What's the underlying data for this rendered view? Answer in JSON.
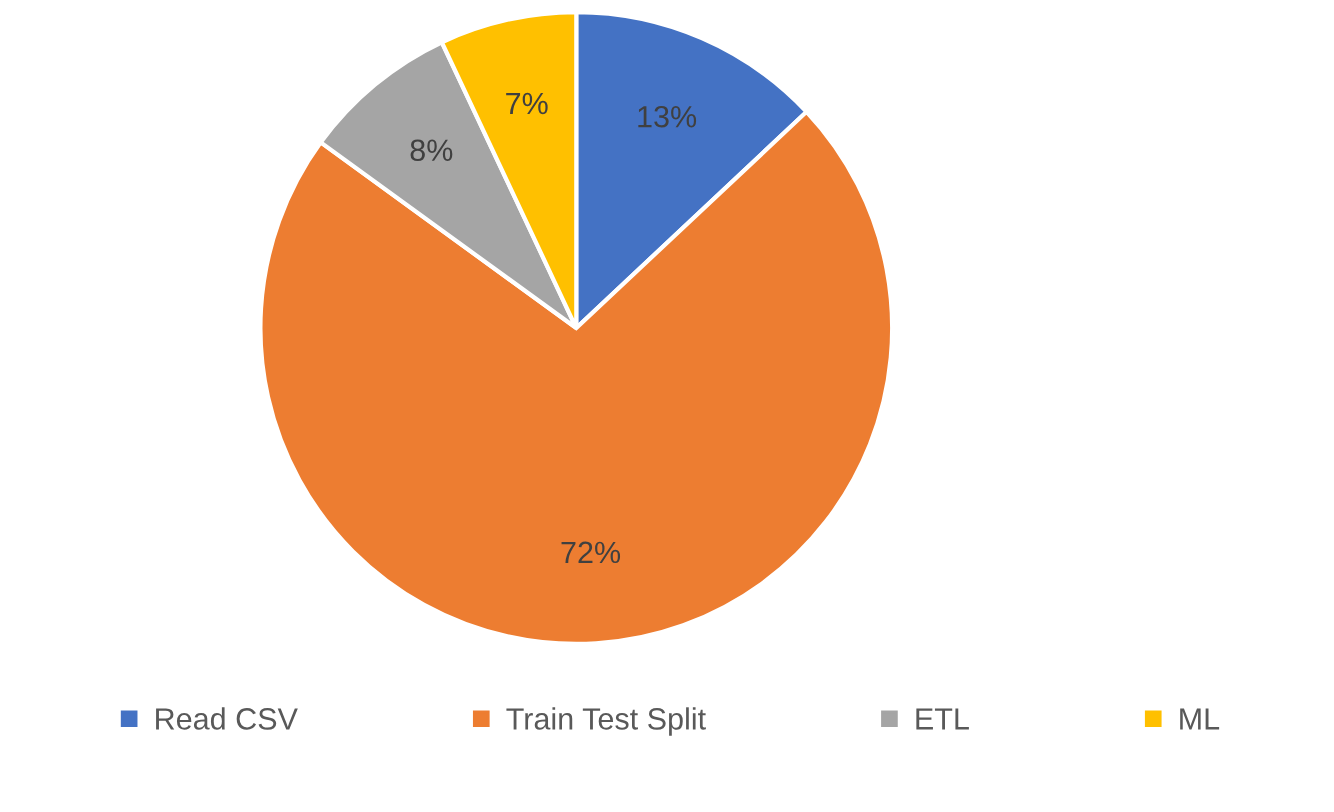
{
  "chart_data": {
    "type": "pie",
    "categories": [
      "Read CSV",
      "Train Test Split",
      "ETL",
      "ML"
    ],
    "values": [
      13,
      72,
      8,
      7
    ],
    "colors": [
      "#4472c4",
      "#ed7d31",
      "#a5a5a5",
      "#ffc000"
    ],
    "value_labels": [
      "13%",
      "72%",
      "8%",
      "7%"
    ],
    "legend": "bottom"
  }
}
